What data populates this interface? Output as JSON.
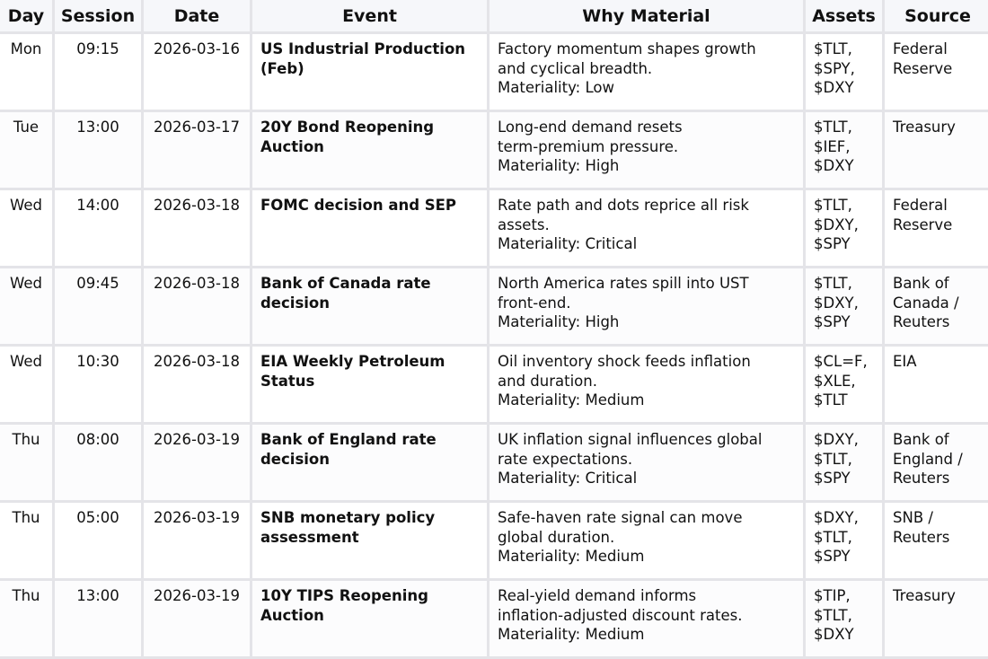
{
  "columns": {
    "day": "Day",
    "session": "Session",
    "date": "Date",
    "event": "Event",
    "why": "Why Material",
    "assets": "Assets",
    "source": "Source"
  },
  "rows": [
    {
      "day": "Mon",
      "session": "09:15",
      "date": "2026-03-16",
      "event": "US Industrial Production (Feb)",
      "why_lines": [
        "Factory momentum shapes growth",
        "and cyclical breadth.",
        "Materiality: Low"
      ],
      "assets": [
        "$TLT,",
        "$SPY,",
        "$DXY"
      ],
      "source": "Federal Reserve"
    },
    {
      "day": "Tue",
      "session": "13:00",
      "date": "2026-03-17",
      "event": "20Y Bond Reopening Auction",
      "why_lines": [
        "Long-end demand resets",
        "term-premium pressure.",
        "Materiality: High"
      ],
      "assets": [
        "$TLT,",
        "$IEF,",
        "$DXY"
      ],
      "source": "Treasury"
    },
    {
      "day": "Wed",
      "session": "14:00",
      "date": "2026-03-18",
      "event": "FOMC decision and SEP",
      "why_lines": [
        "Rate path and dots reprice all risk",
        "assets.",
        "Materiality: Critical"
      ],
      "assets": [
        "$TLT,",
        "$DXY,",
        "$SPY"
      ],
      "source": "Federal Reserve"
    },
    {
      "day": "Wed",
      "session": "09:45",
      "date": "2026-03-18",
      "event": "Bank of Canada rate decision",
      "why_lines": [
        "North America rates spill into UST",
        "front-end.",
        "Materiality: High"
      ],
      "assets": [
        "$TLT,",
        "$DXY,",
        "$SPY"
      ],
      "source": "Bank of Canada / Reuters"
    },
    {
      "day": "Wed",
      "session": "10:30",
      "date": "2026-03-18",
      "event": "EIA Weekly Petroleum Status",
      "why_lines": [
        "Oil inventory shock feeds inflation",
        "and duration.",
        "Materiality: Medium"
      ],
      "assets": [
        "$CL=F,",
        "$XLE,",
        "$TLT"
      ],
      "source": "EIA"
    },
    {
      "day": "Thu",
      "session": "08:00",
      "date": "2026-03-19",
      "event": "Bank of England rate decision",
      "why_lines": [
        "UK inflation signal influences global",
        "rate expectations.",
        "Materiality: Critical"
      ],
      "assets": [
        "$DXY,",
        "$TLT,",
        "$SPY"
      ],
      "source": "Bank of England / Reuters"
    },
    {
      "day": "Thu",
      "session": "05:00",
      "date": "2026-03-19",
      "event": "SNB monetary policy assessment",
      "why_lines": [
        "Safe-haven rate signal can move",
        "global duration.",
        "Materiality: Medium"
      ],
      "assets": [
        "$DXY,",
        "$TLT,",
        "$SPY"
      ],
      "source": "SNB / Reuters"
    },
    {
      "day": "Thu",
      "session": "13:00",
      "date": "2026-03-19",
      "event": "10Y TIPS Reopening Auction",
      "why_lines": [
        "Real-yield demand informs",
        "inflation-adjusted discount rates.",
        "Materiality: Medium"
      ],
      "assets": [
        "$TIP,",
        "$TLT,",
        "$DXY"
      ],
      "source": "Treasury"
    }
  ]
}
